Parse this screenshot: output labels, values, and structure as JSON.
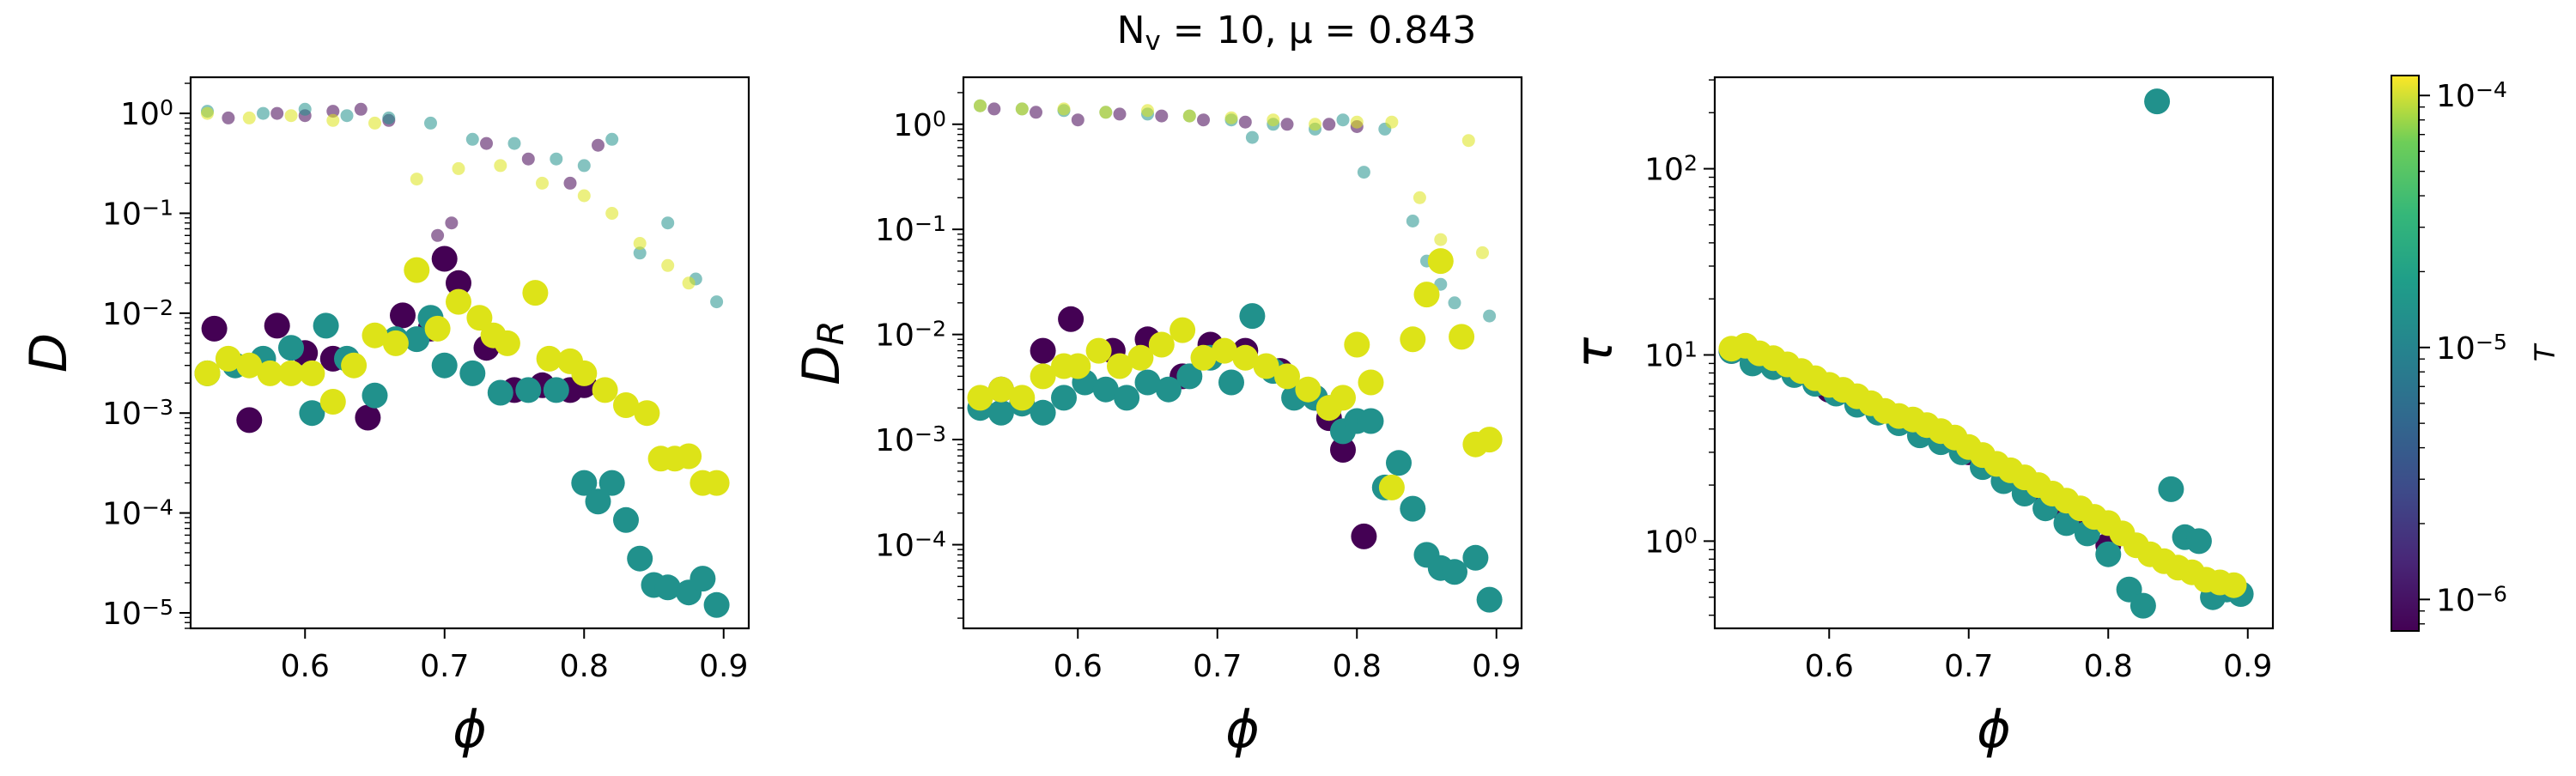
{
  "figure": {
    "suptitle": "N_v = 10, μ = 0.843",
    "colorbar": {
      "label": "T",
      "scale": "log",
      "range": [
        7.5e-07,
        0.00012
      ],
      "ticks": [
        "10^-6",
        "10^-5",
        "10^-4"
      ],
      "colormap": "viridis"
    },
    "colors": {
      "purple": "#440154",
      "teal": "#21918c",
      "yellow": "#dde318"
    }
  },
  "chart_data": [
    {
      "type": "scatter",
      "xlabel": "ϕ",
      "ylabel": "D",
      "yscale": "log",
      "xlim": [
        0.518,
        0.918
      ],
      "ylim": [
        7e-06,
        2.3
      ],
      "xticks": [
        "0.6",
        "0.7",
        "0.8",
        "0.9"
      ],
      "yticks": [
        "10^-5",
        "10^-4",
        "10^-3",
        "10^-2",
        "10^-1",
        "10^0"
      ],
      "series": [
        {
          "color": "#440154",
          "marker": "small",
          "alpha": 0.55,
          "x": [
            0.545,
            0.58,
            0.6,
            0.62,
            0.64,
            0.66,
            0.695,
            0.705,
            0.73,
            0.76,
            0.79,
            0.81
          ],
          "y": [
            0.9,
            1.0,
            0.95,
            1.05,
            1.1,
            0.85,
            0.06,
            0.08,
            0.5,
            0.35,
            0.2,
            0.48
          ]
        },
        {
          "color": "#21918c",
          "marker": "small",
          "alpha": 0.55,
          "x": [
            0.53,
            0.57,
            0.6,
            0.63,
            0.66,
            0.69,
            0.72,
            0.75,
            0.78,
            0.8,
            0.82,
            0.84,
            0.86,
            0.88,
            0.895
          ],
          "y": [
            1.05,
            1.0,
            1.1,
            0.95,
            0.9,
            0.8,
            0.55,
            0.5,
            0.35,
            0.3,
            0.55,
            0.04,
            0.08,
            0.022,
            0.013
          ]
        },
        {
          "color": "#dde318",
          "marker": "small",
          "alpha": 0.55,
          "x": [
            0.53,
            0.56,
            0.59,
            0.62,
            0.65,
            0.68,
            0.71,
            0.74,
            0.77,
            0.8,
            0.82,
            0.84,
            0.86,
            0.875
          ],
          "y": [
            1.0,
            0.9,
            0.95,
            0.85,
            0.8,
            0.22,
            0.28,
            0.3,
            0.2,
            0.15,
            0.1,
            0.05,
            0.03,
            0.02
          ]
        },
        {
          "color": "#440154",
          "marker": "large",
          "alpha": 1,
          "x": [
            0.535,
            0.56,
            0.58,
            0.6,
            0.62,
            0.645,
            0.67,
            0.69,
            0.7,
            0.71,
            0.73,
            0.75,
            0.77,
            0.79,
            0.8
          ],
          "y": [
            0.007,
            0.00085,
            0.0075,
            0.004,
            0.0035,
            0.0009,
            0.0095,
            0.007,
            0.035,
            0.02,
            0.0045,
            0.0017,
            0.0019,
            0.0017,
            0.0019
          ]
        },
        {
          "color": "#21918c",
          "marker": "large",
          "alpha": 1,
          "x": [
            0.53,
            0.55,
            0.57,
            0.59,
            0.605,
            0.615,
            0.63,
            0.65,
            0.665,
            0.68,
            0.69,
            0.7,
            0.72,
            0.74,
            0.76,
            0.78,
            0.8,
            0.81,
            0.82,
            0.83,
            0.84,
            0.85,
            0.86,
            0.875,
            0.885,
            0.895
          ],
          "y": [
            0.0025,
            0.003,
            0.0035,
            0.0045,
            0.001,
            0.0075,
            0.0035,
            0.0015,
            0.0055,
            0.0055,
            0.009,
            0.003,
            0.0025,
            0.0016,
            0.0017,
            0.0017,
            0.0002,
            0.00013,
            0.0002,
            8.5e-05,
            3.5e-05,
            1.9e-05,
            1.8e-05,
            1.6e-05,
            2.2e-05,
            1.2e-05
          ]
        },
        {
          "color": "#dde318",
          "marker": "large",
          "alpha": 1,
          "x": [
            0.53,
            0.545,
            0.56,
            0.575,
            0.59,
            0.605,
            0.62,
            0.635,
            0.65,
            0.665,
            0.68,
            0.695,
            0.71,
            0.725,
            0.735,
            0.745,
            0.765,
            0.775,
            0.79,
            0.8,
            0.815,
            0.83,
            0.845,
            0.855,
            0.865,
            0.875,
            0.885,
            0.895
          ],
          "y": [
            0.0025,
            0.0035,
            0.003,
            0.0025,
            0.0025,
            0.0025,
            0.0013,
            0.003,
            0.006,
            0.005,
            0.027,
            0.007,
            0.013,
            0.009,
            0.006,
            0.005,
            0.016,
            0.0035,
            0.0033,
            0.0025,
            0.0017,
            0.0012,
            0.001,
            0.00035,
            0.00035,
            0.00037,
            0.0002,
            0.0002
          ]
        }
      ]
    },
    {
      "type": "scatter",
      "xlabel": "ϕ",
      "ylabel": "D_R",
      "yscale": "log",
      "xlim": [
        0.518,
        0.918
      ],
      "ylim": [
        1.6e-05,
        2.8
      ],
      "xticks": [
        "0.6",
        "0.7",
        "0.8",
        "0.9"
      ],
      "yticks": [
        "10^-4",
        "10^-3",
        "10^-2",
        "10^-1",
        "10^0"
      ],
      "series": [
        {
          "color": "#440154",
          "marker": "small",
          "alpha": 0.55,
          "x": [
            0.54,
            0.57,
            0.6,
            0.63,
            0.66,
            0.69,
            0.72,
            0.75,
            0.78,
            0.8
          ],
          "y": [
            1.4,
            1.3,
            1.1,
            1.25,
            1.2,
            1.1,
            1.05,
            1.0,
            1.0,
            0.95
          ]
        },
        {
          "color": "#21918c",
          "marker": "small",
          "alpha": 0.55,
          "x": [
            0.53,
            0.56,
            0.59,
            0.62,
            0.65,
            0.68,
            0.71,
            0.725,
            0.74,
            0.77,
            0.79,
            0.805,
            0.82,
            0.84,
            0.85,
            0.86,
            0.87,
            0.895
          ],
          "y": [
            1.5,
            1.4,
            1.35,
            1.3,
            1.25,
            1.2,
            1.1,
            0.75,
            1.0,
            0.9,
            1.1,
            0.35,
            0.9,
            0.12,
            0.05,
            0.03,
            0.02,
            0.015
          ]
        },
        {
          "color": "#dde318",
          "marker": "small",
          "alpha": 0.55,
          "x": [
            0.53,
            0.56,
            0.59,
            0.62,
            0.65,
            0.68,
            0.71,
            0.74,
            0.77,
            0.8,
            0.825,
            0.845,
            0.86,
            0.88,
            0.89
          ],
          "y": [
            1.5,
            1.4,
            1.4,
            1.3,
            1.35,
            1.2,
            1.15,
            1.1,
            1.0,
            1.05,
            1.05,
            0.2,
            0.08,
            0.7,
            0.06
          ]
        },
        {
          "color": "#440154",
          "marker": "large",
          "alpha": 1,
          "x": [
            0.545,
            0.575,
            0.595,
            0.625,
            0.65,
            0.675,
            0.695,
            0.72,
            0.745,
            0.77,
            0.78,
            0.79,
            0.805
          ],
          "y": [
            0.003,
            0.007,
            0.014,
            0.007,
            0.009,
            0.004,
            0.008,
            0.007,
            0.0045,
            0.0025,
            0.0016,
            0.0008,
            0.00012
          ]
        },
        {
          "color": "#21918c",
          "marker": "large",
          "alpha": 1,
          "x": [
            0.53,
            0.545,
            0.56,
            0.575,
            0.59,
            0.605,
            0.62,
            0.635,
            0.65,
            0.665,
            0.68,
            0.695,
            0.71,
            0.725,
            0.74,
            0.755,
            0.77,
            0.78,
            0.79,
            0.8,
            0.81,
            0.82,
            0.83,
            0.84,
            0.85,
            0.86,
            0.87,
            0.885,
            0.895
          ],
          "y": [
            0.002,
            0.0018,
            0.0022,
            0.0018,
            0.0025,
            0.0035,
            0.003,
            0.0025,
            0.0035,
            0.003,
            0.004,
            0.006,
            0.0035,
            0.015,
            0.0045,
            0.0025,
            0.0025,
            0.002,
            0.0012,
            0.0015,
            0.0015,
            0.00035,
            0.0006,
            0.00022,
            8e-05,
            6e-05,
            5.5e-05,
            7.5e-05,
            3e-05
          ]
        },
        {
          "color": "#dde318",
          "marker": "large",
          "alpha": 1,
          "x": [
            0.53,
            0.545,
            0.56,
            0.575,
            0.59,
            0.6,
            0.615,
            0.63,
            0.645,
            0.66,
            0.675,
            0.69,
            0.705,
            0.72,
            0.735,
            0.75,
            0.765,
            0.78,
            0.79,
            0.8,
            0.81,
            0.825,
            0.84,
            0.85,
            0.86,
            0.875,
            0.885,
            0.895
          ],
          "y": [
            0.0025,
            0.003,
            0.0025,
            0.004,
            0.005,
            0.005,
            0.007,
            0.005,
            0.006,
            0.008,
            0.011,
            0.006,
            0.007,
            0.006,
            0.005,
            0.004,
            0.003,
            0.002,
            0.0025,
            0.008,
            0.0035,
            0.00035,
            0.009,
            0.024,
            0.05,
            0.0095,
            0.0009,
            0.001
          ]
        }
      ]
    },
    {
      "type": "scatter",
      "xlabel": "ϕ",
      "ylabel": "τ",
      "yscale": "log",
      "xlim": [
        0.518,
        0.918
      ],
      "ylim": [
        0.34,
        310
      ],
      "xticks": [
        "0.6",
        "0.7",
        "0.8",
        "0.9"
      ],
      "yticks": [
        "10^0",
        "10^1",
        "10^2"
      ],
      "series": [
        {
          "color": "#440154",
          "marker": "large",
          "alpha": 1,
          "x": [
            0.53,
            0.56,
            0.6,
            0.65,
            0.7,
            0.75,
            0.77,
            0.785,
            0.8
          ],
          "y": [
            10.5,
            8.8,
            6.5,
            4.6,
            3.0,
            1.9,
            1.4,
            1.15,
            0.95
          ]
        },
        {
          "color": "#21918c",
          "marker": "large",
          "alpha": 1,
          "x": [
            0.53,
            0.545,
            0.56,
            0.575,
            0.59,
            0.605,
            0.62,
            0.635,
            0.65,
            0.665,
            0.68,
            0.695,
            0.71,
            0.725,
            0.74,
            0.755,
            0.77,
            0.785,
            0.8,
            0.815,
            0.825,
            0.835,
            0.845,
            0.855,
            0.865,
            0.875,
            0.885,
            0.895
          ],
          "y": [
            10.5,
            9.0,
            8.6,
            7.8,
            7.0,
            6.2,
            5.4,
            4.9,
            4.3,
            3.7,
            3.4,
            3.0,
            2.5,
            2.1,
            1.8,
            1.5,
            1.25,
            1.1,
            0.85,
            0.55,
            0.45,
            230,
            1.9,
            1.05,
            1.0,
            0.5,
            0.55,
            0.52
          ]
        },
        {
          "color": "#dde318",
          "marker": "large",
          "alpha": 1,
          "x": [
            0.53,
            0.54,
            0.55,
            0.56,
            0.57,
            0.58,
            0.59,
            0.6,
            0.61,
            0.62,
            0.63,
            0.64,
            0.65,
            0.66,
            0.67,
            0.68,
            0.69,
            0.7,
            0.71,
            0.72,
            0.73,
            0.74,
            0.75,
            0.76,
            0.77,
            0.78,
            0.79,
            0.8,
            0.81,
            0.82,
            0.83,
            0.84,
            0.85,
            0.86,
            0.87,
            0.88,
            0.89
          ],
          "y": [
            10.8,
            11.2,
            10.2,
            9.6,
            8.9,
            8.2,
            7.5,
            6.9,
            6.5,
            6.0,
            5.5,
            5.0,
            4.7,
            4.5,
            4.2,
            3.9,
            3.6,
            3.2,
            2.9,
            2.6,
            2.4,
            2.2,
            2.0,
            1.8,
            1.65,
            1.5,
            1.35,
            1.25,
            1.1,
            0.95,
            0.85,
            0.78,
            0.72,
            0.68,
            0.62,
            0.6,
            0.58
          ]
        }
      ]
    }
  ]
}
